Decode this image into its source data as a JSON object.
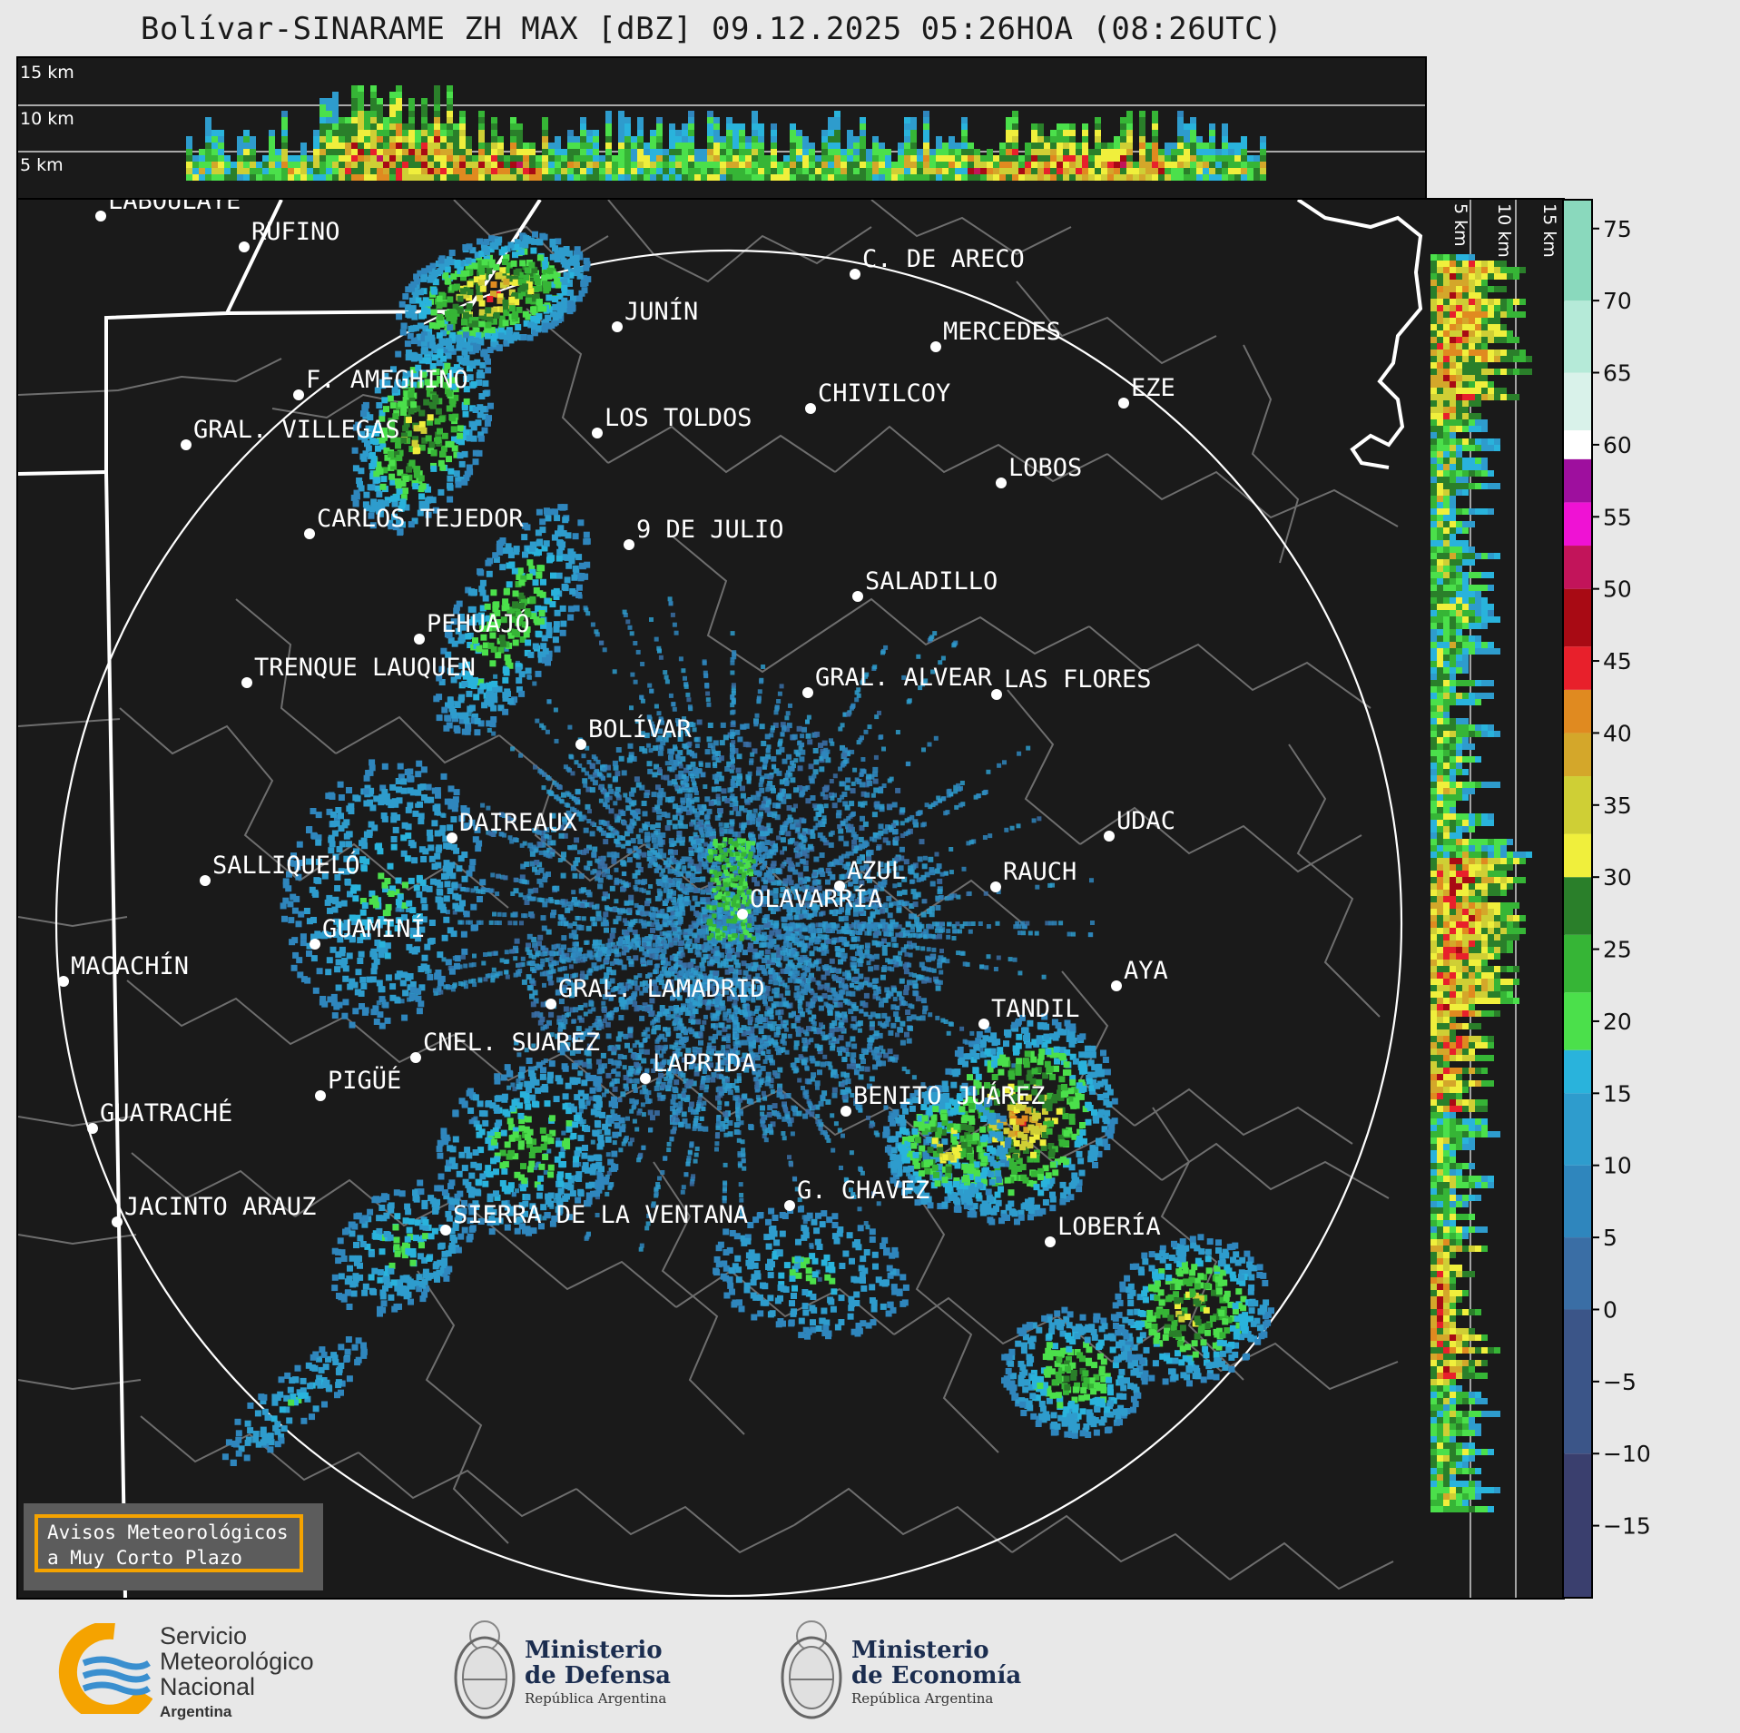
{
  "title": "Bolívar-SINARAME ZH MAX [dBZ] 09.12.2025 05:26HOA (08:26UTC)",
  "top_panel": {
    "height_labels": [
      "15 km",
      "10 km",
      "5 km"
    ]
  },
  "side_panel": {
    "height_labels": [
      "5 km",
      "10 km",
      "15 km"
    ]
  },
  "colorbar": {
    "unit": "dBZ",
    "ticks": [
      "75",
      "70",
      "65",
      "60",
      "55",
      "50",
      "45",
      "40",
      "35",
      "30",
      "25",
      "20",
      "15",
      "10",
      "5",
      "0",
      "−5",
      "−10",
      "−15"
    ],
    "tick_values": [
      75,
      70,
      65,
      60,
      55,
      50,
      45,
      40,
      35,
      30,
      25,
      20,
      15,
      10,
      5,
      0,
      -5,
      -10,
      -15
    ],
    "range": [
      -20,
      77
    ],
    "color_stops": [
      {
        "from": -20,
        "to": -10,
        "color": "#3a3f6e"
      },
      {
        "from": -10,
        "to": 0,
        "color": "#3b5588"
      },
      {
        "from": 0,
        "to": 5,
        "color": "#3a6ea5"
      },
      {
        "from": 5,
        "to": 10,
        "color": "#2f86bd"
      },
      {
        "from": 10,
        "to": 15,
        "color": "#2e9ccd"
      },
      {
        "from": 15,
        "to": 18,
        "color": "#29b3dc"
      },
      {
        "from": 18,
        "to": 22,
        "color": "#4be04b"
      },
      {
        "from": 22,
        "to": 26,
        "color": "#36b536"
      },
      {
        "from": 26,
        "to": 30,
        "color": "#2a7f2a"
      },
      {
        "from": 30,
        "to": 33,
        "color": "#f0ef3c"
      },
      {
        "from": 33,
        "to": 37,
        "color": "#cfcf35"
      },
      {
        "from": 37,
        "to": 40,
        "color": "#d4a72a"
      },
      {
        "from": 40,
        "to": 43,
        "color": "#e08a20"
      },
      {
        "from": 43,
        "to": 46,
        "color": "#e8202b"
      },
      {
        "from": 46,
        "to": 50,
        "color": "#a80a14"
      },
      {
        "from": 50,
        "to": 53,
        "color": "#c2145a"
      },
      {
        "from": 53,
        "to": 56,
        "color": "#ef12d4"
      },
      {
        "from": 56,
        "to": 59,
        "color": "#9e0f9e"
      },
      {
        "from": 59,
        "to": 61,
        "color": "#ffffff"
      },
      {
        "from": 61,
        "to": 65,
        "color": "#d9f2ea"
      },
      {
        "from": 65,
        "to": 70,
        "color": "#b5ead8"
      },
      {
        "from": 70,
        "to": 77,
        "color": "#8ad9bd"
      }
    ]
  },
  "cities": [
    {
      "name": "LABOULAYE"
    },
    {
      "name": "RUFINO"
    },
    {
      "name": "C. DE ARECO"
    },
    {
      "name": "JUNÍN"
    },
    {
      "name": "MERCEDES"
    },
    {
      "name": "F. AMEGHINO"
    },
    {
      "name": "CHIVILCOY"
    },
    {
      "name": "EZE"
    },
    {
      "name": "GRAL. VILLEGAS"
    },
    {
      "name": "LOS TOLDOS"
    },
    {
      "name": "LOBOS"
    },
    {
      "name": "CARLOS TEJEDOR"
    },
    {
      "name": "9 DE JULIO"
    },
    {
      "name": "SALADILLO"
    },
    {
      "name": "PEHUAJÓ"
    },
    {
      "name": "TRENQUE LAUQUEN"
    },
    {
      "name": "GRAL. ALVEAR"
    },
    {
      "name": "LAS FLORES"
    },
    {
      "name": "BOLÍVAR"
    },
    {
      "name": "DAIREAUX"
    },
    {
      "name": "UDAC"
    },
    {
      "name": "SALLIQUELÓ"
    },
    {
      "name": "AZUL"
    },
    {
      "name": "RAUCH"
    },
    {
      "name": "OLAVARRÍA"
    },
    {
      "name": "GUAMINÍ"
    },
    {
      "name": "MACACHÍN"
    },
    {
      "name": "AYA"
    },
    {
      "name": "GRAL. LAMADRID"
    },
    {
      "name": "TANDIL"
    },
    {
      "name": "CNEL. SUAREZ"
    },
    {
      "name": "LAPRIDA"
    },
    {
      "name": "PIGÜÉ"
    },
    {
      "name": "BENITO JUÁREZ"
    },
    {
      "name": "GUATRACHÉ"
    },
    {
      "name": "G. CHAVEZ"
    },
    {
      "name": "JACINTO ARAUZ"
    },
    {
      "name": "SIERRA DE LA VENTANA"
    },
    {
      "name": "LOBERÍA"
    }
  ],
  "warning_box": {
    "line1": "Avisos Meteorológicos",
    "line2": "a Muy Corto Plazo"
  },
  "footer": {
    "smn": {
      "line1": "Servicio",
      "line2": "Meteorológico",
      "line3": "Nacional",
      "line4": "Argentina"
    },
    "defensa": {
      "line1": "Ministerio",
      "line2": "de Defensa",
      "line3": "República Argentina"
    },
    "economia": {
      "line1": "Ministerio",
      "line2": "de Economía",
      "line3": "República Argentina"
    }
  },
  "colors": {
    "map_bg": "#1a1a1a",
    "border_white": "#ffffff",
    "district_lines": "#6e6e6e",
    "accent_orange": "#f5a300"
  }
}
